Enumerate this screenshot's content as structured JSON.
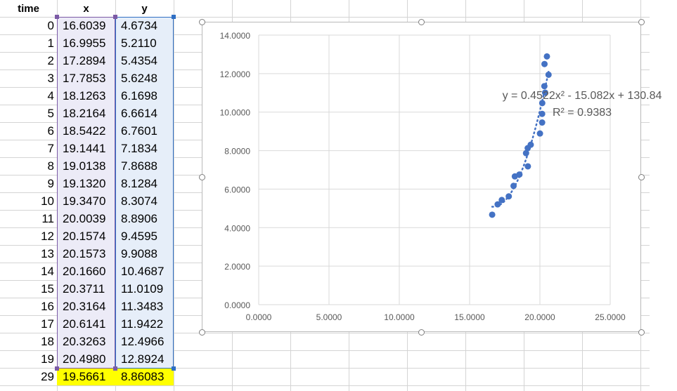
{
  "sheet": {
    "headers": [
      "time",
      "x",
      "y"
    ],
    "rows": [
      {
        "time": "0",
        "x": "16.6039",
        "y": "4.6734"
      },
      {
        "time": "1",
        "x": "16.9955",
        "y": "5.2110"
      },
      {
        "time": "2",
        "x": "17.2894",
        "y": "5.4354"
      },
      {
        "time": "3",
        "x": "17.7853",
        "y": "5.6248"
      },
      {
        "time": "4",
        "x": "18.1263",
        "y": "6.1698"
      },
      {
        "time": "5",
        "x": "18.2164",
        "y": "6.6614"
      },
      {
        "time": "6",
        "x": "18.5422",
        "y": "6.7601"
      },
      {
        "time": "7",
        "x": "19.1441",
        "y": "7.1834"
      },
      {
        "time": "8",
        "x": "19.0138",
        "y": "7.8688"
      },
      {
        "time": "9",
        "x": "19.1320",
        "y": "8.1284"
      },
      {
        "time": "10",
        "x": "19.3470",
        "y": "8.3074"
      },
      {
        "time": "11",
        "x": "20.0039",
        "y": "8.8906"
      },
      {
        "time": "12",
        "x": "20.1574",
        "y": "9.4595"
      },
      {
        "time": "13",
        "x": "20.1573",
        "y": "9.9088"
      },
      {
        "time": "14",
        "x": "20.1660",
        "y": "10.4687"
      },
      {
        "time": "15",
        "x": "20.3711",
        "y": "11.0109"
      },
      {
        "time": "16",
        "x": "20.3164",
        "y": "11.3483"
      },
      {
        "time": "17",
        "x": "20.6141",
        "y": "11.9422"
      },
      {
        "time": "18",
        "x": "20.3263",
        "y": "12.4966"
      },
      {
        "time": "19",
        "x": "20.4980",
        "y": "12.8924"
      }
    ],
    "summary_row": {
      "time": "29",
      "x": "19.5661",
      "y": "8.86083"
    },
    "colors": {
      "x_fill": "#ecebf7",
      "y_fill": "#e6eef9",
      "highlight": "#ffff00",
      "x_border": "#7b5aa6",
      "y_border": "#2f6fc4"
    }
  },
  "chart_data": {
    "type": "scatter",
    "x": [
      16.6039,
      16.9955,
      17.2894,
      17.7853,
      18.1263,
      18.2164,
      18.5422,
      19.1441,
      19.0138,
      19.132,
      19.347,
      20.0039,
      20.1574,
      20.1573,
      20.166,
      20.3711,
      20.3164,
      20.6141,
      20.3263,
      20.498
    ],
    "y": [
      4.6734,
      5.211,
      5.4354,
      5.6248,
      6.1698,
      6.6614,
      6.7601,
      7.1834,
      7.8688,
      8.1284,
      8.3074,
      8.8906,
      9.4595,
      9.9088,
      10.4687,
      11.0109,
      11.3483,
      11.9422,
      12.4966,
      12.8924
    ],
    "xlim": [
      0,
      25
    ],
    "ylim": [
      0,
      14
    ],
    "x_ticks": [
      "0.0000",
      "5.0000",
      "10.0000",
      "15.0000",
      "20.0000",
      "25.0000"
    ],
    "y_ticks": [
      "0.0000",
      "2.0000",
      "4.0000",
      "6.0000",
      "8.0000",
      "10.0000",
      "12.0000",
      "14.0000"
    ],
    "grid": true,
    "marker_color": "#4472c4",
    "trendline": {
      "type": "polynomial",
      "order": 2,
      "a": 0.4522,
      "b": -15.082,
      "c": 130.84,
      "style": "dotted"
    },
    "equation_text": "y = 0.4522x² - 15.082x + 130.84",
    "r2_text": "R² = 0.9383"
  }
}
